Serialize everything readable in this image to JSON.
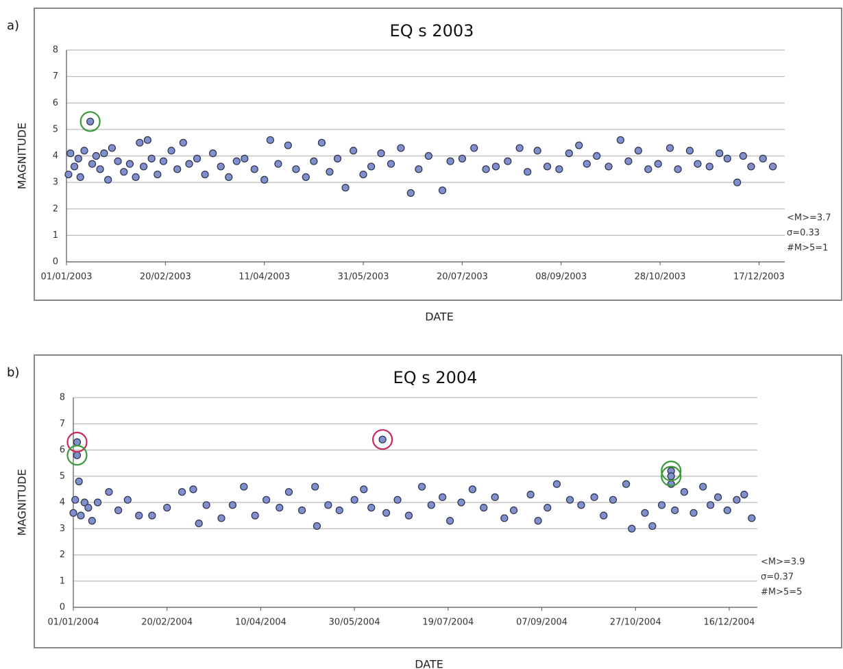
{
  "chart_data": [
    {
      "type": "scatter",
      "panel_label": "a)",
      "title": "EQ s 2003",
      "x_label": "DATE",
      "y_label": "MAGNITUDE",
      "xlim": [
        "01/01/2003",
        "30/12/2003"
      ],
      "xticks": [
        "01/01/2003",
        "20/02/2003",
        "11/04/2003",
        "31/05/2003",
        "20/07/2003",
        "08/09/2003",
        "28/10/2003",
        "17/12/2003"
      ],
      "ylim": [
        0,
        8
      ],
      "yticks": [
        0,
        1,
        2,
        3,
        4,
        5,
        6,
        7,
        8
      ],
      "grid": true,
      "annotations": [
        "<M>=3.7",
        "σ=0.33",
        "#M>5=1"
      ],
      "series": [
        {
          "color": "#7f90cc",
          "x": [
            "02/01/2003",
            "03/01/2003",
            "05/01/2003",
            "07/01/2003",
            "08/01/2003",
            "10/01/2003",
            "13/01/2003",
            "14/01/2003",
            "16/01/2003",
            "18/01/2003",
            "20/01/2003",
            "22/01/2003",
            "24/01/2003",
            "27/01/2003",
            "30/01/2003",
            "02/02/2003",
            "05/02/2003",
            "07/02/2003",
            "09/02/2003",
            "11/02/2003",
            "13/02/2003",
            "16/02/2003",
            "19/02/2003",
            "23/02/2003",
            "26/02/2003",
            "01/03/2003",
            "04/03/2003",
            "08/03/2003",
            "12/03/2003",
            "16/03/2003",
            "20/03/2003",
            "24/03/2003",
            "28/03/2003",
            "01/04/2003",
            "06/04/2003",
            "11/04/2003",
            "14/04/2003",
            "18/04/2003",
            "23/04/2003",
            "27/04/2003",
            "02/05/2003",
            "06/05/2003",
            "10/05/2003",
            "14/05/2003",
            "18/05/2003",
            "22/05/2003",
            "26/05/2003",
            "31/05/2003",
            "04/06/2003",
            "09/06/2003",
            "14/06/2003",
            "19/06/2003",
            "24/06/2003",
            "28/06/2003",
            "03/07/2003",
            "10/07/2003",
            "14/07/2003",
            "20/07/2003",
            "26/07/2003",
            "01/08/2003",
            "06/08/2003",
            "12/08/2003",
            "18/08/2003",
            "22/08/2003",
            "27/08/2003",
            "01/09/2003",
            "07/09/2003",
            "12/09/2003",
            "17/09/2003",
            "21/09/2003",
            "26/09/2003",
            "02/10/2003",
            "08/10/2003",
            "12/10/2003",
            "17/10/2003",
            "22/10/2003",
            "27/10/2003",
            "02/11/2003",
            "06/11/2003",
            "12/11/2003",
            "16/11/2003",
            "22/11/2003",
            "27/11/2003",
            "01/12/2003",
            "06/12/2003",
            "09/12/2003",
            "13/12/2003",
            "19/12/2003",
            "24/12/2003"
          ],
          "values": [
            3.3,
            4.1,
            3.6,
            3.9,
            3.2,
            4.2,
            5.3,
            3.7,
            4.0,
            3.5,
            4.1,
            3.1,
            4.3,
            3.8,
            3.4,
            3.7,
            3.2,
            4.5,
            3.6,
            4.6,
            3.9,
            3.3,
            3.8,
            4.2,
            3.5,
            4.5,
            3.7,
            3.9,
            3.3,
            4.1,
            3.6,
            3.2,
            3.8,
            3.9,
            3.5,
            3.1,
            4.6,
            3.7,
            4.4,
            3.5,
            3.2,
            3.8,
            4.5,
            3.4,
            3.9,
            2.8,
            4.2,
            3.3,
            3.6,
            4.1,
            3.7,
            4.3,
            2.6,
            3.5,
            4.0,
            2.7,
            3.8,
            3.9,
            4.3,
            3.5,
            3.6,
            3.8,
            4.3,
            3.4,
            4.2,
            3.6,
            3.5,
            4.1,
            4.4,
            3.7,
            4.0,
            3.6,
            4.6,
            3.8,
            4.2,
            3.5,
            3.7,
            4.3,
            3.5,
            4.2,
            3.7,
            3.6,
            4.1,
            3.9,
            3.0,
            4.0,
            3.6,
            3.9,
            3.6
          ]
        }
      ],
      "circled": [
        {
          "x": "13/01/2003",
          "y": 5.3,
          "color": "#3a9a3a"
        }
      ]
    },
    {
      "type": "scatter",
      "panel_label": "b)",
      "title": "EQ s 2004",
      "x_label": "DATE",
      "y_label": "MAGNITUDE",
      "xlim": [
        "01/01/2004",
        "31/12/2004"
      ],
      "xticks": [
        "01/01/2004",
        "20/02/2004",
        "10/04/2004",
        "30/05/2004",
        "19/07/2004",
        "07/09/2004",
        "27/10/2004",
        "16/12/2004"
      ],
      "ylim": [
        0,
        8
      ],
      "yticks": [
        0,
        1,
        2,
        3,
        4,
        5,
        6,
        7,
        8
      ],
      "grid": true,
      "annotations": [
        "<M>=3.9",
        "σ=0.37",
        "#M>5=5"
      ],
      "series": [
        {
          "color": "#7f90cc",
          "x": [
            "01/01/2004",
            "02/01/2004",
            "03/01/2004",
            "03/01/2004",
            "04/01/2004",
            "05/01/2004",
            "07/01/2004",
            "09/01/2004",
            "11/01/2004",
            "14/01/2004",
            "20/01/2004",
            "25/01/2004",
            "30/01/2004",
            "05/02/2004",
            "12/02/2004",
            "20/02/2004",
            "28/02/2004",
            "05/03/2004",
            "08/03/2004",
            "12/03/2004",
            "20/03/2004",
            "26/03/2004",
            "01/04/2004",
            "07/04/2004",
            "13/04/2004",
            "20/04/2004",
            "25/04/2004",
            "02/05/2004",
            "09/05/2004",
            "10/05/2004",
            "16/05/2004",
            "22/05/2004",
            "30/05/2004",
            "04/06/2004",
            "08/06/2004",
            "14/06/2004",
            "16/06/2004",
            "22/06/2004",
            "28/06/2004",
            "05/07/2004",
            "10/07/2004",
            "16/07/2004",
            "20/07/2004",
            "26/07/2004",
            "01/08/2004",
            "07/08/2004",
            "13/08/2004",
            "18/08/2004",
            "23/08/2004",
            "01/09/2004",
            "05/09/2004",
            "10/09/2004",
            "15/09/2004",
            "22/09/2004",
            "28/09/2004",
            "05/10/2004",
            "10/10/2004",
            "15/10/2004",
            "22/10/2004",
            "25/10/2004",
            "01/11/2004",
            "05/11/2004",
            "10/11/2004",
            "15/11/2004",
            "15/11/2004",
            "15/11/2004",
            "17/11/2004",
            "22/11/2004",
            "27/11/2004",
            "02/12/2004",
            "06/12/2004",
            "10/12/2004",
            "15/12/2004",
            "20/12/2004",
            "24/12/2004",
            "28/12/2004"
          ],
          "values": [
            3.6,
            4.1,
            6.3,
            5.8,
            4.8,
            3.5,
            4.0,
            3.8,
            3.3,
            4.0,
            4.4,
            3.7,
            4.1,
            3.5,
            3.5,
            3.8,
            4.4,
            4.5,
            3.2,
            3.9,
            3.4,
            3.9,
            4.6,
            3.5,
            4.1,
            3.8,
            4.4,
            3.7,
            4.6,
            3.1,
            3.9,
            3.7,
            4.1,
            4.5,
            3.8,
            6.4,
            3.6,
            4.1,
            3.5,
            4.6,
            3.9,
            4.2,
            3.3,
            4.0,
            4.5,
            3.8,
            4.2,
            3.4,
            3.7,
            4.3,
            3.3,
            3.8,
            4.7,
            4.1,
            3.9,
            4.2,
            3.5,
            4.1,
            4.7,
            3.0,
            3.6,
            3.1,
            3.9,
            5.2,
            5.0,
            4.7,
            3.7,
            4.4,
            3.6,
            4.6,
            3.9,
            4.2,
            3.7,
            4.1,
            4.3,
            3.4
          ]
        }
      ],
      "circled": [
        {
          "x": "03/01/2004",
          "y": 6.3,
          "color": "#c8285a"
        },
        {
          "x": "03/01/2004",
          "y": 5.8,
          "color": "#3a9a3a"
        },
        {
          "x": "14/06/2004",
          "y": 6.4,
          "color": "#c8285a"
        },
        {
          "x": "15/11/2004",
          "y": 5.2,
          "color": "#3a9a3a"
        },
        {
          "x": "15/11/2004",
          "y": 5.0,
          "color": "#3a9a3a"
        }
      ]
    }
  ]
}
